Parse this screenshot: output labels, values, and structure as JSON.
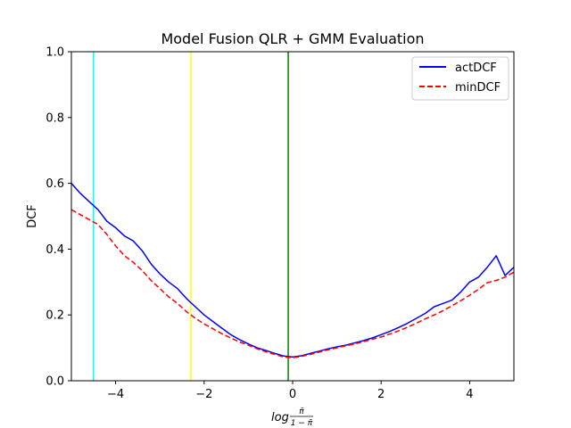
{
  "chart_data": {
    "type": "line",
    "title": "Model Fusion QLR + GMM Evaluation",
    "xlabel_parts": {
      "prefix": "log",
      "numerator": "π̃",
      "denominator": "1 − π̃"
    },
    "ylabel": "DCF",
    "xlim": [
      -5,
      5
    ],
    "ylim": [
      0,
      1
    ],
    "xticks": [
      -4,
      -2,
      0,
      2,
      4
    ],
    "xtick_labels": [
      "−4",
      "−2",
      "0",
      "2",
      "4"
    ],
    "yticks": [
      0.0,
      0.2,
      0.4,
      0.6,
      0.8,
      1.0
    ],
    "ytick_labels": [
      "0.0",
      "0.2",
      "0.4",
      "0.6",
      "0.8",
      "1.0"
    ],
    "grid": false,
    "legend_position": "top-right",
    "series": [
      {
        "name": "actDCF",
        "color": "#0000ff",
        "style": "solid",
        "x": [
          -5.0,
          -4.8,
          -4.6,
          -4.4,
          -4.2,
          -4.0,
          -3.8,
          -3.6,
          -3.4,
          -3.2,
          -3.0,
          -2.8,
          -2.6,
          -2.4,
          -2.2,
          -2.0,
          -1.8,
          -1.6,
          -1.4,
          -1.2,
          -1.0,
          -0.8,
          -0.6,
          -0.4,
          -0.2,
          0.0,
          0.2,
          0.4,
          0.6,
          0.8,
          1.0,
          1.2,
          1.4,
          1.6,
          1.8,
          2.0,
          2.2,
          2.4,
          2.6,
          2.8,
          3.0,
          3.2,
          3.4,
          3.6,
          3.8,
          4.0,
          4.2,
          4.4,
          4.6,
          4.8,
          5.0
        ],
        "values": [
          0.6,
          0.57,
          0.545,
          0.52,
          0.485,
          0.465,
          0.44,
          0.425,
          0.395,
          0.355,
          0.325,
          0.3,
          0.28,
          0.25,
          0.225,
          0.2,
          0.18,
          0.16,
          0.14,
          0.125,
          0.112,
          0.1,
          0.092,
          0.083,
          0.075,
          0.072,
          0.076,
          0.083,
          0.09,
          0.097,
          0.103,
          0.108,
          0.115,
          0.122,
          0.13,
          0.14,
          0.15,
          0.162,
          0.175,
          0.19,
          0.205,
          0.225,
          0.235,
          0.245,
          0.27,
          0.3,
          0.315,
          0.345,
          0.38,
          0.32,
          0.345
        ]
      },
      {
        "name": "minDCF",
        "color": "#ff0000",
        "style": "dashed",
        "x": [
          -5.0,
          -4.8,
          -4.6,
          -4.4,
          -4.2,
          -4.0,
          -3.8,
          -3.6,
          -3.4,
          -3.2,
          -3.0,
          -2.8,
          -2.6,
          -2.4,
          -2.2,
          -2.0,
          -1.8,
          -1.6,
          -1.4,
          -1.2,
          -1.0,
          -0.8,
          -0.6,
          -0.4,
          -0.2,
          0.0,
          0.2,
          0.4,
          0.6,
          0.8,
          1.0,
          1.2,
          1.4,
          1.6,
          1.8,
          2.0,
          2.2,
          2.4,
          2.6,
          2.8,
          3.0,
          3.2,
          3.4,
          3.6,
          3.8,
          4.0,
          4.2,
          4.4,
          4.6,
          4.8,
          5.0
        ],
        "values": [
          0.52,
          0.505,
          0.49,
          0.475,
          0.445,
          0.41,
          0.38,
          0.36,
          0.335,
          0.305,
          0.28,
          0.255,
          0.235,
          0.21,
          0.19,
          0.173,
          0.158,
          0.143,
          0.13,
          0.118,
          0.108,
          0.097,
          0.088,
          0.08,
          0.072,
          0.07,
          0.074,
          0.08,
          0.087,
          0.094,
          0.1,
          0.106,
          0.112,
          0.119,
          0.126,
          0.133,
          0.142,
          0.152,
          0.163,
          0.175,
          0.188,
          0.2,
          0.213,
          0.228,
          0.243,
          0.26,
          0.278,
          0.298,
          0.305,
          0.315,
          0.33
        ]
      }
    ],
    "vlines": [
      {
        "x": -4.5,
        "color": "#00ffff"
      },
      {
        "x": -2.3,
        "color": "#ffff00"
      },
      {
        "x": -0.1,
        "color": "#008000"
      }
    ]
  }
}
